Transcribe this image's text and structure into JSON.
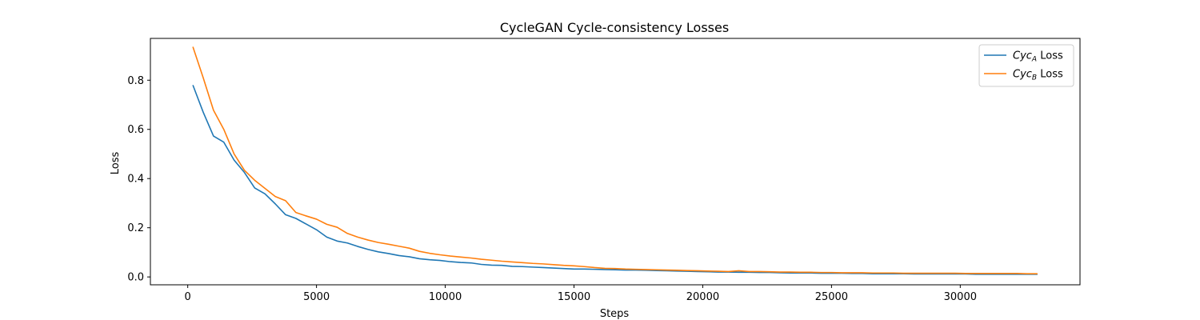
{
  "chart_data": {
    "type": "line",
    "title": "CycleGAN Cycle-consistency Losses",
    "xlabel": "Steps",
    "ylabel": "Loss",
    "xlim": [
      -1450,
      34650
    ],
    "ylim": [
      -0.032,
      0.97
    ],
    "xticks": [
      0,
      5000,
      10000,
      15000,
      20000,
      25000,
      30000
    ],
    "yticks": [
      0.0,
      0.2,
      0.4,
      0.6,
      0.8
    ],
    "grid": false,
    "legend_position": "top-right",
    "series": [
      {
        "name": "Cyc_A Loss",
        "name_main": "Cyc",
        "name_sub": "A",
        "name_suffix": " Loss",
        "color": "#1f77b4",
        "x": [
          200,
          600,
          1000,
          1400,
          1800,
          2200,
          2600,
          3000,
          3400,
          3800,
          4200,
          4600,
          5000,
          5400,
          5800,
          6200,
          6600,
          7000,
          7400,
          7800,
          8200,
          8600,
          9000,
          9400,
          9800,
          10200,
          10600,
          11000,
          11400,
          11800,
          12200,
          12600,
          13000,
          13400,
          13800,
          14200,
          14600,
          15000,
          15400,
          15800,
          16200,
          16600,
          17000,
          17400,
          17800,
          18200,
          18600,
          19000,
          19400,
          19800,
          20200,
          20600,
          21000,
          21400,
          21800,
          22200,
          22600,
          23000,
          23400,
          23800,
          24200,
          24600,
          25000,
          25400,
          25800,
          26200,
          26600,
          27000,
          27400,
          27800,
          28200,
          28600,
          29000,
          29400,
          29800,
          30200,
          30600,
          31000,
          31400,
          31800,
          32200,
          32600,
          33000
        ],
        "y": [
          0.78,
          0.67,
          0.573,
          0.548,
          0.475,
          0.425,
          0.362,
          0.338,
          0.297,
          0.253,
          0.238,
          0.215,
          0.192,
          0.162,
          0.146,
          0.138,
          0.124,
          0.112,
          0.102,
          0.095,
          0.087,
          0.082,
          0.074,
          0.07,
          0.067,
          0.062,
          0.059,
          0.057,
          0.051,
          0.048,
          0.047,
          0.043,
          0.042,
          0.04,
          0.038,
          0.036,
          0.034,
          0.032,
          0.032,
          0.031,
          0.03,
          0.029,
          0.028,
          0.028,
          0.027,
          0.026,
          0.025,
          0.024,
          0.023,
          0.022,
          0.021,
          0.02,
          0.02,
          0.019,
          0.019,
          0.018,
          0.018,
          0.017,
          0.016,
          0.016,
          0.016,
          0.015,
          0.015,
          0.015,
          0.014,
          0.014,
          0.013,
          0.013,
          0.013,
          0.013,
          0.012,
          0.012,
          0.012,
          0.012,
          0.012,
          0.012,
          0.011,
          0.011,
          0.011,
          0.011,
          0.011,
          0.011,
          0.011
        ]
      },
      {
        "name": "Cyc_B Loss",
        "name_main": "Cyc",
        "name_sub": "B",
        "name_suffix": " Loss",
        "color": "#ff7f0e",
        "x": [
          200,
          600,
          1000,
          1400,
          1800,
          2200,
          2600,
          3000,
          3400,
          3800,
          4200,
          4600,
          5000,
          5400,
          5800,
          6200,
          6600,
          7000,
          7400,
          7800,
          8200,
          8600,
          9000,
          9400,
          9800,
          10200,
          10600,
          11000,
          11400,
          11800,
          12200,
          12600,
          13000,
          13400,
          13800,
          14200,
          14600,
          15000,
          15400,
          15800,
          16200,
          16600,
          17000,
          17400,
          17800,
          18200,
          18600,
          19000,
          19400,
          19800,
          20200,
          20600,
          21000,
          21400,
          21800,
          22200,
          22600,
          23000,
          23400,
          23800,
          24200,
          24600,
          25000,
          25400,
          25800,
          26200,
          26600,
          27000,
          27400,
          27800,
          28200,
          28600,
          29000,
          29400,
          29800,
          30200,
          30600,
          31000,
          31400,
          31800,
          32200,
          32600,
          33000
        ],
        "y": [
          0.936,
          0.81,
          0.678,
          0.6,
          0.5,
          0.434,
          0.393,
          0.36,
          0.327,
          0.31,
          0.262,
          0.248,
          0.235,
          0.214,
          0.202,
          0.177,
          0.162,
          0.15,
          0.14,
          0.133,
          0.125,
          0.117,
          0.104,
          0.096,
          0.09,
          0.085,
          0.081,
          0.077,
          0.072,
          0.068,
          0.064,
          0.061,
          0.058,
          0.055,
          0.053,
          0.05,
          0.047,
          0.045,
          0.042,
          0.038,
          0.035,
          0.034,
          0.032,
          0.031,
          0.03,
          0.029,
          0.028,
          0.027,
          0.026,
          0.025,
          0.024,
          0.023,
          0.022,
          0.025,
          0.022,
          0.022,
          0.021,
          0.02,
          0.02,
          0.019,
          0.019,
          0.018,
          0.018,
          0.017,
          0.017,
          0.017,
          0.016,
          0.016,
          0.016,
          0.015,
          0.015,
          0.015,
          0.015,
          0.015,
          0.015,
          0.014,
          0.014,
          0.014,
          0.014,
          0.014,
          0.014,
          0.013,
          0.013
        ]
      }
    ]
  }
}
